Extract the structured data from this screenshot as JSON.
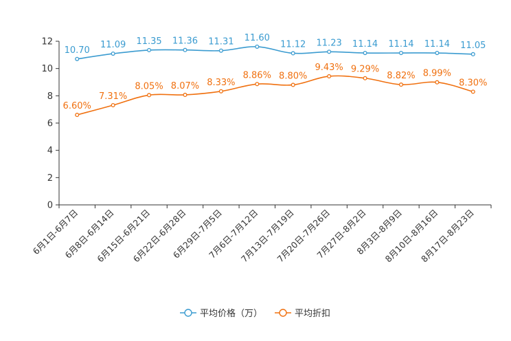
{
  "chart_data": {
    "type": "line",
    "title": "",
    "xlabel": "",
    "ylabel": "",
    "ylim": [
      0,
      12
    ],
    "yticks": [
      0,
      2,
      4,
      6,
      8,
      10,
      12
    ],
    "grid": false,
    "legend_position": "bottom",
    "categories": [
      "6月1日-6月7日",
      "6月8日-6月14日",
      "6月15日-6月21日",
      "6月22日-6月28日",
      "6月29日-7月5日",
      "7月6日-7月12日",
      "7月13日-7月19日",
      "7月20日-7月26日",
      "7月27日-8月2日",
      "8月3日-8月9日",
      "8月10日-8月16日",
      "8月17日-8月23日"
    ],
    "series": [
      {
        "name": "平均价格（万）",
        "color": "#3a9bd0",
        "values": [
          10.7,
          11.09,
          11.35,
          11.36,
          11.31,
          11.6,
          11.12,
          11.23,
          11.14,
          11.14,
          11.14,
          11.05
        ],
        "labels": [
          "10.70",
          "11.09",
          "11.35",
          "11.36",
          "11.31",
          "11.60",
          "11.12",
          "11.23",
          "11.14",
          "11.14",
          "11.14",
          "11.05"
        ]
      },
      {
        "name": "平均折扣",
        "color": "#f0700f",
        "values": [
          6.6,
          7.31,
          8.05,
          8.07,
          8.33,
          8.86,
          8.8,
          9.43,
          9.29,
          8.82,
          8.99,
          8.3
        ],
        "labels": [
          "6.60%",
          "7.31%",
          "8.05%",
          "8.07%",
          "8.33%",
          "8.86%",
          "8.80%",
          "9.43%",
          "9.29%",
          "8.82%",
          "8.99%",
          "8.30%"
        ]
      }
    ]
  }
}
